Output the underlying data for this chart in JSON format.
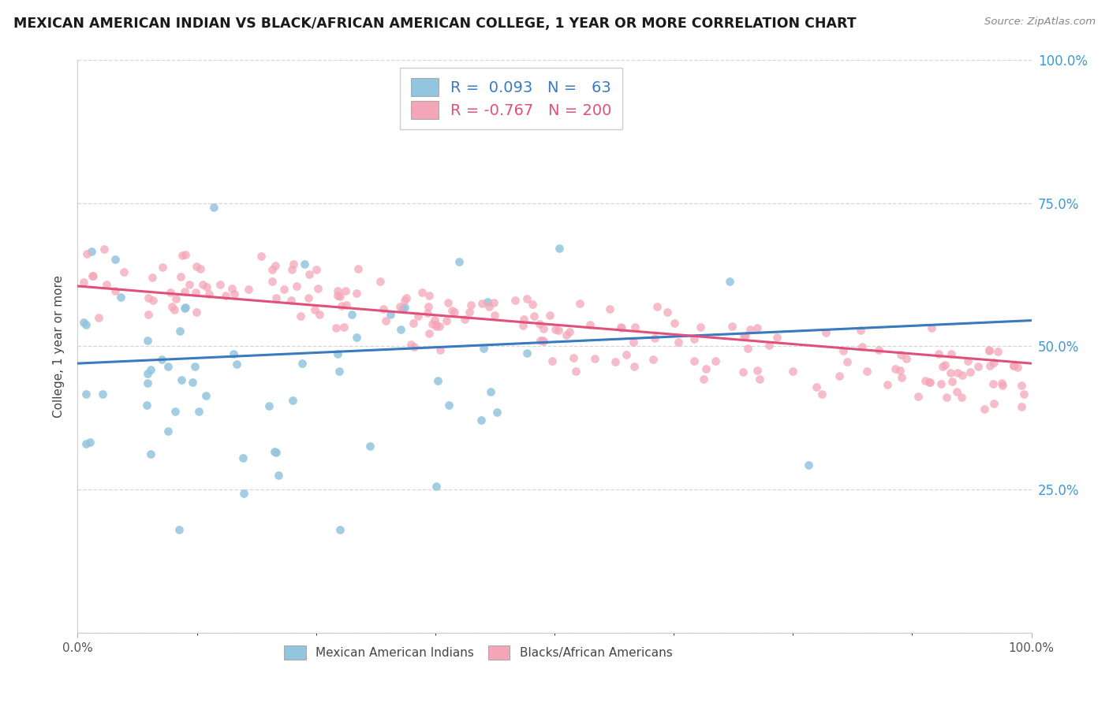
{
  "title": "MEXICAN AMERICAN INDIAN VS BLACK/AFRICAN AMERICAN COLLEGE, 1 YEAR OR MORE CORRELATION CHART",
  "source": "Source: ZipAtlas.com",
  "ylabel": "College, 1 year or more",
  "legend_label1": "Mexican American Indians",
  "legend_label2": "Blacks/African Americans",
  "R1": 0.093,
  "N1": 63,
  "R2": -0.767,
  "N2": 200,
  "color_blue": "#92c5de",
  "color_pink": "#f4a6b8",
  "color_blue_line": "#3a7abf",
  "color_pink_line": "#e0507a",
  "background": "#ffffff",
  "grid_color": "#cccccc",
  "xmin": 0.0,
  "xmax": 1.0,
  "ymin": 0.0,
  "ymax": 1.0,
  "ytick_color": "#3a9ad9",
  "xtick_color": "#555555"
}
